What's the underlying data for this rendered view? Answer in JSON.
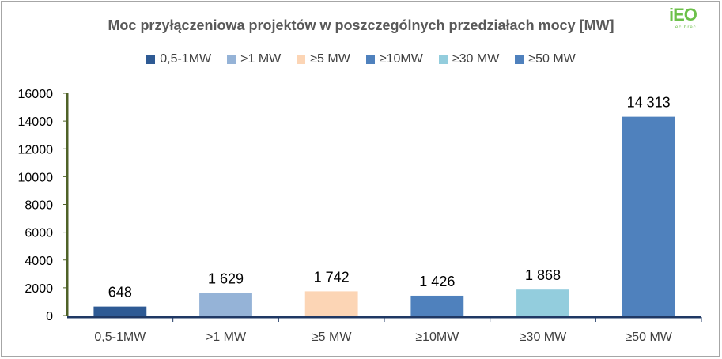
{
  "chart_data": {
    "type": "bar",
    "title": "Moc przyłączeniowa projektów w poszczególnych przedziałach mocy [MW]",
    "categories": [
      "0,5-1MW",
      ">1 MW",
      "≥5 MW",
      "≥10MW",
      "≥30 MW",
      "≥50 MW"
    ],
    "values": [
      648,
      1629,
      1742,
      1426,
      1868,
      14313
    ],
    "value_labels": [
      "648",
      "1 629",
      "1 742",
      "1 426",
      "1 868",
      "14 313"
    ],
    "colors": [
      "#2e5a94",
      "#95b3d7",
      "#fcd5b5",
      "#4f81bd",
      "#93cddd",
      "#4f81bd"
    ],
    "legend": [
      {
        "label": "0,5-1MW",
        "color": "#2e5a94"
      },
      {
        "label": ">1 MW",
        "color": "#95b3d7"
      },
      {
        "label": "≥5 MW",
        "color": "#fcd5b5"
      },
      {
        "label": "≥10MW",
        "color": "#4f81bd"
      },
      {
        "label": "≥30 MW",
        "color": "#93cddd"
      },
      {
        "label": "≥50 MW",
        "color": "#4f81bd"
      }
    ],
    "legend_position": "top",
    "ylim": [
      0,
      16000
    ],
    "yticks": [
      "0",
      "2000",
      "4000",
      "6000",
      "8000",
      "10000",
      "12000",
      "14000",
      "16000"
    ],
    "grid": false,
    "xlabel": "",
    "ylabel": ""
  },
  "logo": {
    "main": "iEO",
    "sub": "ec brec"
  }
}
